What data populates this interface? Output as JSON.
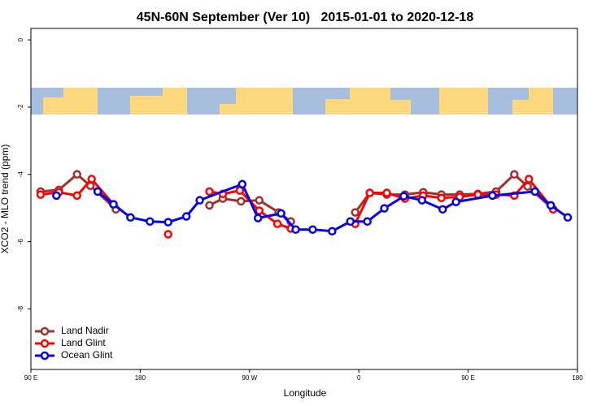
{
  "chart_data": {
    "type": "line",
    "title": "45N-60N September (Ver 10)   2015-01-01 to 2020-12-18",
    "xlabel": "Longitude",
    "ylabel": "XCO2 - MLO trend (ppm)",
    "xlim": [
      90,
      540
    ],
    "ylim": [
      -9.8,
      0.34
    ],
    "xticks": [
      {
        "value": 90,
        "label": "90 E"
      },
      {
        "value": 180,
        "label": "180"
      },
      {
        "value": 270,
        "label": "90 W"
      },
      {
        "value": 360,
        "label": "0"
      },
      {
        "value": 450,
        "label": "90 E"
      },
      {
        "value": 540,
        "label": "180"
      }
    ],
    "yticks": [
      0,
      -2,
      -4,
      -6,
      -8
    ],
    "legend": "bottomleft",
    "series": [
      {
        "name": "Land Nadir",
        "color": "#a0302e",
        "x": [
          98,
          113,
          128,
          139,
          160,
          null,
          237,
          248,
          263,
          278,
          294,
          304,
          null,
          357,
          369,
          383,
          398,
          413,
          428,
          443,
          458,
          473,
          488,
          499,
          520
        ],
        "values": [
          -4.51,
          -4.46,
          -4.0,
          -4.34,
          -5.04,
          null,
          -4.92,
          -4.72,
          -4.8,
          -4.77,
          -5.13,
          -5.4,
          null,
          -5.13,
          -4.55,
          -4.6,
          -4.6,
          -4.53,
          -4.6,
          -4.6,
          -4.58,
          -4.51,
          -4.0,
          -4.36,
          -5.04
        ]
      },
      {
        "name": "Land Glint",
        "color": "#ff0000",
        "x": [
          98,
          113,
          128,
          140,
          158,
          null,
          203,
          null,
          237,
          248,
          262,
          278,
          293,
          304,
          null,
          357,
          369,
          383,
          398,
          413,
          428,
          443,
          458,
          473,
          488,
          500,
          520
        ],
        "values": [
          -4.6,
          -4.53,
          -4.63,
          -4.14,
          -4.89,
          null,
          -5.78,
          null,
          -4.51,
          -4.58,
          -4.48,
          -5.08,
          -5.47,
          -5.61,
          null,
          -5.47,
          -4.55,
          -4.55,
          -4.72,
          -4.63,
          -4.7,
          -4.67,
          -4.6,
          -4.6,
          -4.63,
          -4.14,
          -5.04
        ]
      },
      {
        "name": "Ocean Glint",
        "color": "#0000ee",
        "x": [
          111,
          null,
          145,
          158,
          172,
          188,
          203,
          218,
          229,
          264,
          277,
          296,
          308,
          322,
          338,
          353,
          367,
          381,
          397,
          412,
          429,
          440,
          470,
          505,
          518,
          532
        ],
        "values": [
          -4.63,
          null,
          -4.51,
          -4.89,
          -5.28,
          -5.4,
          -5.42,
          -5.25,
          -4.77,
          -4.29,
          -5.3,
          -5.16,
          -5.64,
          -5.64,
          -5.69,
          -5.4,
          -5.4,
          -5.01,
          -4.65,
          -4.77,
          -5.04,
          -4.82,
          -4.63,
          -4.51,
          -4.92,
          -5.28
        ]
      }
    ]
  }
}
